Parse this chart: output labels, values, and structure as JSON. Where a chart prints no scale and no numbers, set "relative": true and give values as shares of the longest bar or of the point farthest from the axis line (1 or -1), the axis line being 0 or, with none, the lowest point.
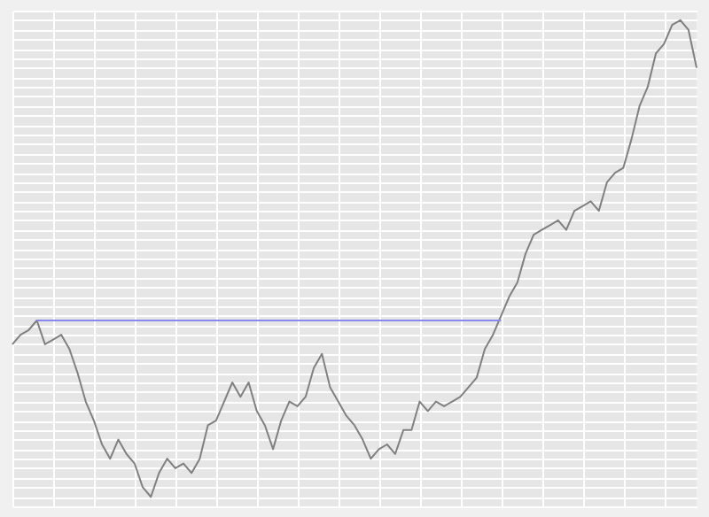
{
  "chart_data": {
    "type": "line",
    "relative": true,
    "grid": true,
    "marker": "none",
    "line_style": "solid",
    "categories": [
      null,
      null,
      null,
      null,
      null,
      null,
      null,
      null,
      null,
      null,
      null,
      null,
      null,
      null,
      null,
      null,
      null,
      null,
      null,
      null,
      null,
      null,
      null,
      null,
      null,
      null,
      null,
      null,
      null,
      null,
      null,
      null,
      null,
      null,
      null,
      null,
      null,
      null,
      null,
      null,
      null,
      null,
      null,
      null,
      null,
      null,
      null,
      null,
      null,
      null,
      null,
      null,
      null,
      null,
      null,
      null,
      null,
      null,
      null,
      null,
      null,
      null,
      null,
      null,
      null,
      null,
      null,
      null,
      null,
      null,
      null,
      null,
      null,
      null,
      null,
      null,
      null,
      null,
      null,
      null,
      null,
      null,
      null,
      null,
      null
    ],
    "series": [
      {
        "color": "#808080",
        "values": [
          0.32,
          0.34,
          0.35,
          0.37,
          0.32,
          0.33,
          0.34,
          0.31,
          0.26,
          0.2,
          0.16,
          0.11,
          0.08,
          0.12,
          0.09,
          0.07,
          0.02,
          0,
          0.05,
          0.08,
          0.06,
          0.07,
          0.05,
          0.08,
          0.15,
          0.16,
          0.2,
          0.24,
          0.21,
          0.24,
          0.18,
          0.15,
          0.1,
          0.16,
          0.2,
          0.19,
          0.21,
          0.27,
          0.3,
          0.23,
          0.2,
          0.17,
          0.15,
          0.12,
          0.08,
          0.1,
          0.11,
          0.09,
          0.14,
          0.14,
          0.2,
          0.18,
          0.2,
          0.19,
          0.2,
          0.21,
          0.23,
          0.25,
          0.31,
          0.34,
          0.38,
          0.42,
          0.45,
          0.51,
          0.55,
          0.56,
          0.57,
          0.58,
          0.56,
          0.6,
          0.61,
          0.62,
          0.6,
          0.66,
          0.68,
          0.69,
          0.75,
          0.82,
          0.86,
          0.93,
          0.95,
          0.99,
          1,
          0.98,
          0.9
        ]
      },
      {
        "color": "#8888ee",
        "values": [
          null,
          null,
          null,
          0.37,
          0.37,
          0.37,
          0.37,
          0.37,
          0.37,
          0.37,
          0.37,
          0.37,
          0.37,
          0.37,
          0.37,
          0.37,
          0.37,
          0.37,
          0.37,
          0.37,
          0.37,
          0.37,
          0.37,
          0.37,
          0.37,
          0.37,
          0.37,
          0.37,
          0.37,
          0.37,
          0.37,
          0.37,
          0.37,
          0.37,
          0.37,
          0.37,
          0.37,
          0.37,
          0.37,
          0.37,
          0.37,
          0.37,
          0.37,
          0.37,
          0.37,
          0.37,
          0.37,
          0.37,
          0.37,
          0.37,
          0.37,
          0.37,
          0.37,
          0.37,
          0.37,
          0.37,
          0.37,
          0.37,
          0.37,
          0.37,
          0.37,
          null,
          null,
          null,
          null,
          null,
          null,
          null,
          null,
          null,
          null,
          null,
          null,
          null,
          null,
          null,
          null,
          null,
          null,
          null,
          null,
          null,
          null,
          null,
          null
        ]
      }
    ]
  }
}
